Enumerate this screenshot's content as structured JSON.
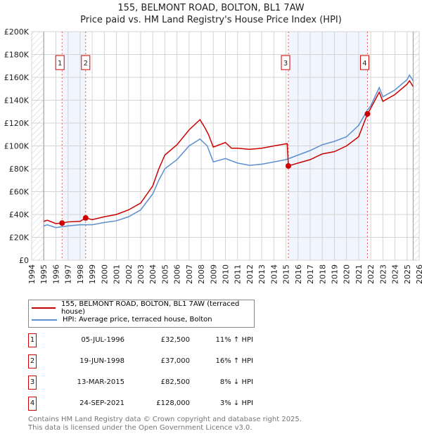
{
  "chart_data": {
    "type": "line",
    "title": "155, BELMONT ROAD, BOLTON, BL1 7AW",
    "subtitle": "Price paid vs. HM Land Registry's House Price Index (HPI)",
    "xlim": [
      1994,
      2026
    ],
    "ylim": [
      0,
      200000
    ],
    "x_ticks": [
      "1994",
      "1995",
      "1996",
      "1997",
      "1998",
      "1999",
      "2000",
      "2001",
      "2002",
      "2003",
      "2004",
      "2005",
      "2006",
      "2007",
      "2008",
      "2009",
      "2010",
      "2011",
      "2012",
      "2013",
      "2014",
      "2015",
      "2016",
      "2017",
      "2018",
      "2019",
      "2020",
      "2021",
      "2022",
      "2023",
      "2024",
      "2025",
      "2026"
    ],
    "y_ticks": [
      {
        "v": 0,
        "label": "£0"
      },
      {
        "v": 20000,
        "label": "£20K"
      },
      {
        "v": 40000,
        "label": "£40K"
      },
      {
        "v": 60000,
        "label": "£60K"
      },
      {
        "v": 80000,
        "label": "£80K"
      },
      {
        "v": 100000,
        "label": "£100K"
      },
      {
        "v": 120000,
        "label": "£120K"
      },
      {
        "v": 140000,
        "label": "£140K"
      },
      {
        "v": 160000,
        "label": "£160K"
      },
      {
        "v": 180000,
        "label": "£180K"
      },
      {
        "v": 200000,
        "label": "£200K"
      }
    ],
    "grid": true,
    "series": [
      {
        "name": "155, BELMONT ROAD, BOLTON, BL1 7AW (terraced house)",
        "color": "#cc0000",
        "x": [
          1995,
          1995.3,
          1996,
          1996.5,
          1997,
          1998,
          1998.46,
          1999,
          2000,
          2001,
          2002,
          2003,
          2004,
          2004.5,
          2005,
          2006,
          2007,
          2007.9,
          2008.3,
          2008.6,
          2009,
          2010,
          2010.5,
          2011,
          2012,
          2013,
          2014,
          2015.1,
          2015.2,
          2016,
          2017,
          2018,
          2019,
          2020,
          2021,
          2021.73,
          2022,
          2022.7,
          2023,
          2024,
          2025,
          2025.2,
          2025.5
        ],
        "y": [
          34000,
          35000,
          32000,
          32500,
          33500,
          34000,
          37000,
          35500,
          38000,
          40000,
          44000,
          50000,
          65000,
          80000,
          92000,
          101000,
          114000,
          123000,
          116000,
          110000,
          99000,
          103000,
          98000,
          98000,
          97000,
          98000,
          100000,
          102000,
          82500,
          85000,
          88000,
          93000,
          95000,
          100000,
          108000,
          128000,
          133000,
          147000,
          139000,
          145000,
          154000,
          157000,
          152000
        ]
      },
      {
        "name": "HPI: Average price, terraced house, Bolton",
        "color": "#5b8fd0",
        "x": [
          1995,
          1995.3,
          1996,
          1997,
          1998,
          1999,
          2000,
          2001,
          2002,
          2003,
          2004,
          2004.5,
          2005,
          2006,
          2007,
          2007.9,
          2008.5,
          2009,
          2010,
          2011,
          2012,
          2013,
          2014,
          2015,
          2016,
          2017,
          2018,
          2019,
          2020,
          2021,
          2021.7,
          2022,
          2022.7,
          2023,
          2024,
          2025,
          2025.2,
          2025.5
        ],
        "y": [
          30000,
          31000,
          28500,
          30000,
          31000,
          31000,
          33000,
          34500,
          38000,
          44000,
          58000,
          70000,
          80000,
          88000,
          100000,
          106000,
          100000,
          86000,
          89000,
          85000,
          83000,
          84000,
          86000,
          88000,
          92000,
          96000,
          101000,
          104000,
          108000,
          118000,
          131000,
          135000,
          151000,
          143000,
          149000,
          158000,
          162000,
          157000
        ]
      }
    ],
    "legend_position": "below",
    "sales": [
      {
        "n": "1",
        "x": 1996.51,
        "price": 32500,
        "date": "05-JUL-1996",
        "price_label": "£32,500",
        "hpi": "11% ↑ HPI"
      },
      {
        "n": "2",
        "x": 1998.46,
        "price": 37000,
        "date": "19-JUN-1998",
        "price_label": "£37,000",
        "hpi": "16% ↑ HPI"
      },
      {
        "n": "3",
        "x": 2015.2,
        "price": 82500,
        "date": "13-MAR-2015",
        "price_label": "£82,500",
        "hpi": "8% ↓ HPI"
      },
      {
        "n": "4",
        "x": 2021.73,
        "price": 128000,
        "date": "24-SEP-2021",
        "price_label": "£128,000",
        "hpi": "3% ↓ HPI"
      }
    ],
    "data_range": [
      1995,
      2025.5
    ]
  },
  "footer": {
    "line1": "Contains HM Land Registry data © Crown copyright and database right 2025.",
    "line2": "This data is licensed under the Open Government Licence v3.0."
  }
}
